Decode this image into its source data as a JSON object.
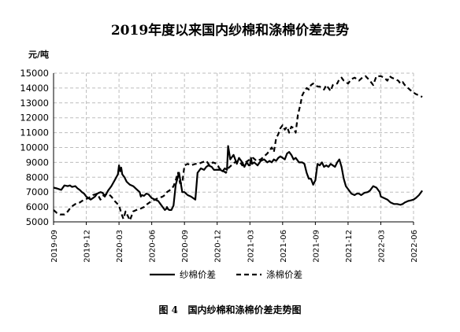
{
  "chart_data": {
    "type": "line",
    "title": "2019年度以来国内纱棉和涤棉价差走势",
    "ylabel": "元/吨",
    "xlabel": "",
    "ylim": [
      5000,
      15000
    ],
    "yticks": [
      5000,
      6000,
      7000,
      8000,
      9000,
      10000,
      11000,
      12000,
      13000,
      14000,
      15000
    ],
    "xtick_labels": [
      "2019-09",
      "2019-12",
      "2020-03",
      "2020-06",
      "2020-09",
      "2020-12",
      "2021-03",
      "2021-06",
      "2021-09",
      "2021-12",
      "2022-03",
      "2022-06"
    ],
    "grid": true,
    "legend_position": "bottom",
    "caption": "图 4   国内纱棉和涤棉价差走势图",
    "series": [
      {
        "name": "纱棉价差",
        "line_style": "solid",
        "color": "#000000",
        "x": [
          0,
          0.3,
          0.5,
          0.7,
          1.0,
          1.3,
          1.5,
          1.7,
          2.0,
          2.2,
          2.4,
          2.6,
          2.8,
          3.0,
          3.2,
          3.4,
          3.6,
          3.8,
          4.0,
          4.3,
          4.5,
          4.7,
          5.0,
          5.3,
          5.6,
          5.9,
          6.0,
          6.1,
          6.2,
          6.3,
          6.5,
          6.7,
          7.0,
          7.3,
          7.6,
          7.9,
          8.0,
          8.1,
          8.3,
          8.5,
          8.7,
          9.0,
          9.3,
          9.6,
          9.8,
          10.0,
          10.1,
          10.2,
          10.3,
          10.35,
          10.4,
          10.5,
          10.6,
          10.8,
          11.0,
          11.2,
          11.5,
          11.8,
          12.0,
          12.3,
          12.6,
          12.8,
          13.0,
          13.2,
          13.5,
          13.8,
          14.0,
          14.2,
          14.5,
          14.7,
          15.0,
          15.3,
          15.5,
          15.7,
          15.9,
          16.0,
          16.2,
          16.5,
          16.8,
          17.0,
          17.3,
          17.5,
          17.7,
          17.9,
          18.0,
          18.1,
          18.2,
          18.4,
          18.7,
          19.0,
          19.3,
          19.6,
          19.8,
          20.0,
          20.2,
          20.4,
          20.6,
          20.8,
          21.0,
          21.2,
          21.4,
          21.6,
          21.8,
          22.0,
          22.2,
          22.5,
          22.8,
          23.0,
          23.2,
          23.4,
          23.6,
          23.8,
          24.0,
          24.2,
          24.4,
          24.6,
          24.8,
          25.0,
          25.2,
          25.4,
          25.6,
          25.8,
          26.0,
          26.2,
          26.4,
          26.6,
          26.8,
          27.0,
          27.3,
          27.6,
          27.8,
          28.0,
          28.2,
          28.5,
          28.8,
          29.0,
          29.3,
          29.6,
          29.9,
          30.0,
          30.3,
          30.6,
          30.9,
          31.2,
          31.5,
          31.8,
          32.0,
          32.2,
          32.5,
          32.8,
          33.0,
          33.2,
          33.5,
          33.8
        ],
        "values": [
          7300,
          7250,
          7200,
          7150,
          7450,
          7400,
          7450,
          7350,
          7400,
          7250,
          7150,
          7000,
          6900,
          6700,
          6600,
          6500,
          6600,
          6700,
          6900,
          7000,
          6950,
          6700,
          7100,
          7400,
          7800,
          8200,
          8800,
          8400,
          8650,
          8200,
          8000,
          7700,
          7500,
          7400,
          7200,
          7000,
          6700,
          6800,
          6750,
          6900,
          6850,
          6600,
          6500,
          6400,
          6200,
          6000,
          5900,
          5800,
          5850,
          5900,
          6000,
          5850,
          5800,
          5800,
          6100,
          7500,
          8300,
          7000,
          7000,
          6800,
          6700,
          6600,
          6500,
          8300,
          8600,
          8500,
          8700,
          8800,
          8700,
          8500,
          8500,
          8500,
          8400,
          8600,
          8500,
          10100,
          9200,
          9500,
          8900,
          9300,
          9000,
          8700,
          9000,
          8800,
          8800,
          9300,
          8900,
          9000,
          8800,
          9100,
          9200,
          9000,
          9100,
          9000,
          9200,
          9100,
          9300,
          9400,
          9300,
          9200,
          9600,
          9700,
          9500,
          9200,
          9300,
          9000,
          9000,
          8900,
          8300,
          7900,
          7900,
          7500,
          7800,
          8900,
          8800,
          9000,
          8700,
          8800,
          8700,
          8900,
          8800,
          8700,
          9000,
          9200,
          8700,
          7900,
          7400,
          7200,
          6900,
          6800,
          6900,
          6900,
          6800,
          6950,
          7000,
          7100,
          7400,
          7300,
          7000,
          6700,
          6600,
          6500,
          6300,
          6200,
          6200,
          6150,
          6200,
          6300,
          6400,
          6450,
          6500,
          6600,
          6800,
          7100
        ]
      },
      {
        "name": "涤棉价差",
        "line_style": "dashed",
        "color": "#000000",
        "x": [
          0,
          0.3,
          0.6,
          1.0,
          1.3,
          1.6,
          2.0,
          2.4,
          2.8,
          3.2,
          3.6,
          4.0,
          4.3,
          4.6,
          5.0,
          5.3,
          5.6,
          6.0,
          6.2,
          6.4,
          6.6,
          6.8,
          7.0,
          7.3,
          7.6,
          8.0,
          8.3,
          8.6,
          9.0,
          9.3,
          9.6,
          10.0,
          10.2,
          10.4,
          10.6,
          10.8,
          11.0,
          11.2,
          11.4,
          11.6,
          11.8,
          12.0,
          12.3,
          12.6,
          13.0,
          13.3,
          13.6,
          14.0,
          14.3,
          14.6,
          15.0,
          15.2,
          15.4,
          15.6,
          15.8,
          16.0,
          16.3,
          16.6,
          17.0,
          17.3,
          17.6,
          18.0,
          18.3,
          18.6,
          19.0,
          19.3,
          19.6,
          19.8,
          20.0,
          20.2,
          20.4,
          20.6,
          20.8,
          21.0,
          21.2,
          21.4,
          21.6,
          21.8,
          22.0,
          22.2,
          22.4,
          22.6,
          22.8,
          23.0,
          23.2,
          23.4,
          23.6,
          23.8,
          24.0,
          24.2,
          24.4,
          24.6,
          24.8,
          25.0,
          25.2,
          25.4,
          25.6,
          25.8,
          26.0,
          26.2,
          26.4,
          26.6,
          26.8,
          27.0,
          27.3,
          27.6,
          28.0,
          28.3,
          28.6,
          29.0,
          29.3,
          29.6,
          30.0,
          30.3,
          30.6,
          30.8,
          31.0,
          31.3,
          31.6,
          31.8,
          32.0,
          32.2,
          32.5,
          32.8,
          33.0,
          33.2,
          33.5,
          33.8
        ],
        "values": [
          5800,
          5600,
          5500,
          5500,
          5700,
          6000,
          6200,
          6300,
          6500,
          6600,
          6800,
          6900,
          6500,
          6800,
          6900,
          6700,
          6400,
          6100,
          5600,
          5200,
          5700,
          5400,
          5100,
          5700,
          5800,
          5900,
          6000,
          6200,
          6400,
          6500,
          6600,
          6700,
          6800,
          7000,
          7100,
          7200,
          7400,
          7800,
          8300,
          7600,
          7600,
          8800,
          8900,
          8800,
          8900,
          8900,
          9000,
          9100,
          8800,
          9000,
          8900,
          8600,
          8500,
          8400,
          8300,
          8600,
          8800,
          9000,
          9100,
          8800,
          9000,
          9200,
          9300,
          9100,
          9200,
          9400,
          9600,
          9800,
          10000,
          9700,
          10600,
          10900,
          11300,
          11500,
          11200,
          11400,
          11000,
          11400,
          11300,
          11000,
          12200,
          12800,
          13500,
          13800,
          14000,
          13900,
          14200,
          14300,
          14200,
          14100,
          14100,
          14000,
          13900,
          14200,
          14000,
          13800,
          14200,
          14300,
          14300,
          14600,
          14700,
          14500,
          14400,
          14300,
          14600,
          14700,
          14500,
          14700,
          14800,
          14500,
          14200,
          14800,
          14800,
          14700,
          14500,
          14800,
          14700,
          14600,
          14500,
          14300,
          14400,
          14200,
          14000,
          13800,
          13700,
          13600,
          13500,
          13400
        ]
      }
    ]
  }
}
